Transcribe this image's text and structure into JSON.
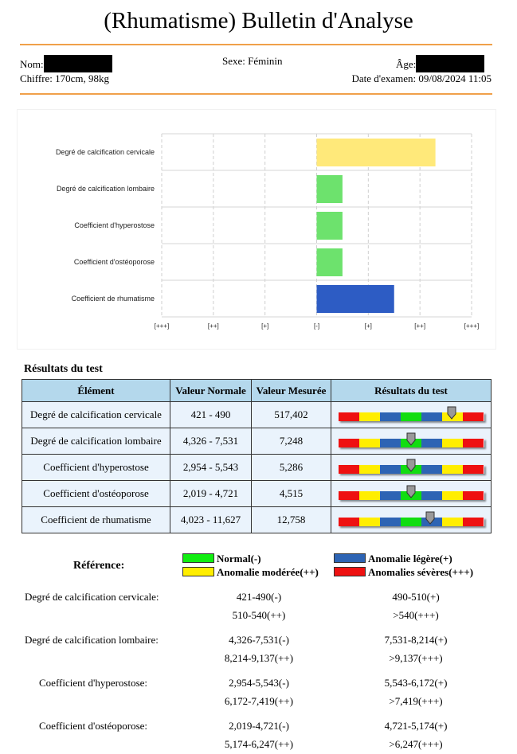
{
  "report": {
    "title": "(Rhumatisme) Bulletin d'Analyse"
  },
  "patient": {
    "nom_label": "Nom:",
    "sexe": "Sexe: Féminin",
    "age_label": "Âge:",
    "chiffre": "Chiffre: 170cm, 98kg",
    "date": "Date d'examen: 09/08/2024 11:05"
  },
  "chart_data": {
    "type": "bar",
    "orientation": "horizontal",
    "categories": [
      "Degré de calcification cervicale",
      "Degré de calcification lombaire",
      "Coefficient d'hyperostose",
      "Coefficient d'ostéoporose",
      "Coefficient de rhumatisme"
    ],
    "tick_labels": [
      "[+++]",
      "[++]",
      "[+]",
      "[-]",
      "[+]",
      "[++]",
      "[+++]"
    ],
    "values": [
      2.3,
      0.5,
      0.5,
      0.5,
      1.5
    ],
    "colors": [
      "#ffe97a",
      "#6de26d",
      "#6de26d",
      "#6de26d",
      "#2d5cc4"
    ],
    "xlim": [
      -3,
      3
    ],
    "grid": true
  },
  "results": {
    "section_title": "Résultats du test",
    "headers": [
      "Élément",
      "Valeur Normale",
      "Valeur Mesurée",
      "Résultats du test"
    ],
    "rows": [
      {
        "element": "Degré de calcification cervicale",
        "normal": "421 - 490",
        "measured": "517,402",
        "level": 0.78
      },
      {
        "element": "Degré de calcification lombaire",
        "normal": "4,326 - 7,531",
        "measured": "7,248",
        "level": 0.5
      },
      {
        "element": "Coefficient d'hyperostose",
        "normal": "2,954 - 5,543",
        "measured": "5,286",
        "level": 0.5
      },
      {
        "element": "Coefficient d'ostéoporose",
        "normal": "2,019 - 4,721",
        "measured": "4,515",
        "level": 0.5
      },
      {
        "element": "Coefficient de rhumatisme",
        "normal": "4,023 - 11,627",
        "measured": "12,758",
        "level": 0.63
      }
    ],
    "scale_colors": [
      "#ee1111",
      "#ffee00",
      "#2d64b4",
      "#11dd11",
      "#2d64b4",
      "#ffee00",
      "#ee1111"
    ]
  },
  "reference": {
    "label": "Référence:",
    "legend": [
      {
        "label": "Normal(-)",
        "color": "#11ee11"
      },
      {
        "label": "Anomalie légère(+)",
        "color": "#2d64b4"
      },
      {
        "label": "Anomalie modérée(++)",
        "color": "#ffee00"
      },
      {
        "label": "Anomalies sévères(+++)",
        "color": "#ee1111"
      }
    ],
    "items": [
      {
        "name": "Degré de calcification cervicale:",
        "normal": "421-490(-)",
        "light": "490-510(+)",
        "moderate": "510-540(++)",
        "severe": ">540(+++)"
      },
      {
        "name": "Degré de calcification lombaire:",
        "normal": "4,326-7,531(-)",
        "light": "7,531-8,214(+)",
        "moderate": "8,214-9,137(++)",
        "severe": ">9,137(+++)"
      },
      {
        "name": "Coefficient d'hyperostose:",
        "normal": "2,954-5,543(-)",
        "light": "5,543-6,172(+)",
        "moderate": "6,172-7,419(++)",
        "severe": ">7,419(+++)"
      },
      {
        "name": "Coefficient d'ostéoporose:",
        "normal": "2,019-4,721(-)",
        "light": "4,721-5,174(+)",
        "moderate": "5,174-6,247(++)",
        "severe": ">6,247(+++)"
      }
    ]
  }
}
